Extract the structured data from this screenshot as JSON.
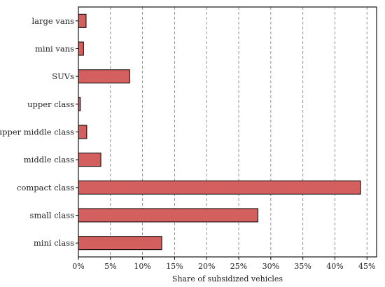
{
  "chart_data": {
    "type": "bar",
    "orientation": "horizontal",
    "categories": [
      "large vans",
      "mini vans",
      "SUVs",
      "upper class",
      "upper middle class",
      "middle class",
      "compact class",
      "small class",
      "mini class"
    ],
    "series": [
      {
        "values": [
          1.2,
          0.8,
          8.0,
          0.3,
          1.3,
          3.5,
          44.0,
          28.0,
          13.0
        ]
      }
    ],
    "xlabel": "Share of subsidized vehicles",
    "xlim": [
      0,
      46.5
    ],
    "xticks": [
      0,
      5,
      10,
      15,
      20,
      25,
      30,
      35,
      40,
      45
    ],
    "xtick_labels": [
      "0%",
      "5%",
      "10%",
      "15%",
      "20%",
      "25%",
      "30%",
      "35%",
      "40%",
      "45%"
    ],
    "grid": "x-dashed",
    "colors": {
      "bar_fill": "#d45f5f",
      "bar_stroke": "#000000",
      "grid": "#888888",
      "axis": "#000000"
    }
  }
}
